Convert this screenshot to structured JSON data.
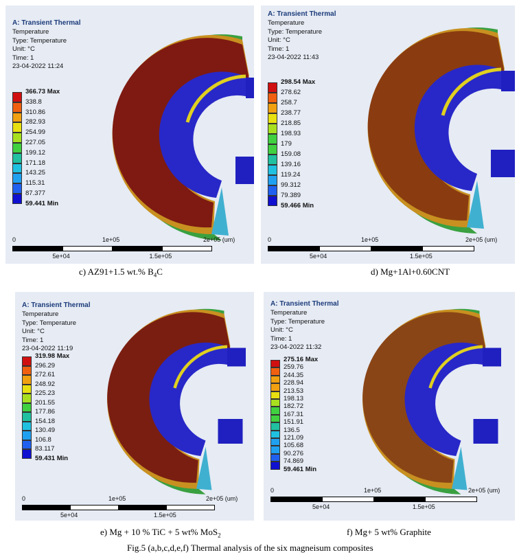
{
  "panels": [
    {
      "id": "c",
      "title": "A: Transient Thermal",
      "lines": [
        "Temperature",
        "Type: Temperature",
        "Unit: °C",
        "Time: 1",
        "23-04-2022 11:24"
      ],
      "legend": [
        "366.73 Max",
        "338.8",
        "310.86",
        "282.93",
        "254.99",
        "227.05",
        "199.12",
        "171.18",
        "143.25",
        "115.31",
        "87.377",
        "59.441 Min"
      ],
      "scale": [
        "0",
        "5e+04",
        "1e+05",
        "1.5e+05",
        "2e+05 (um)"
      ],
      "face_color": "#7e1a12",
      "caption_main": "c) AZ91+1.5 wt.% B",
      "caption_sub": "4",
      "caption_end": "C"
    },
    {
      "id": "d",
      "title": "A: Transient Thermal",
      "lines": [
        "Temperature",
        "Type: Temperature",
        "Unit: °C",
        "Time: 1",
        "23-04-2022 11:43"
      ],
      "legend": [
        "298.54 Max",
        "278.62",
        "258.7",
        "238.77",
        "218.85",
        "198.93",
        "179",
        "159.08",
        "139.16",
        "119.24",
        "99.312",
        "79.389",
        "59.466 Min"
      ],
      "scale": [
        "0",
        "5e+04",
        "1e+05",
        "1.5e+05",
        "2e+05 (um)"
      ],
      "face_color": "#8a3c10",
      "caption_main": "d) Mg+1Al+0.60CNT",
      "caption_sub": "",
      "caption_end": ""
    },
    {
      "id": "e",
      "title": "A: Transient Thermal",
      "lines": [
        "Temperature",
        "Type: Temperature",
        "Unit: °C",
        "Time: 1",
        "23-04-2022 11:19"
      ],
      "legend": [
        "319.98 Max",
        "296.29",
        "272.61",
        "248.92",
        "225.23",
        "201.55",
        "177.86",
        "154.18",
        "130.49",
        "106.8",
        "83.117",
        "59.431 Min"
      ],
      "scale": [
        "0",
        "5e+04",
        "1e+05",
        "1.5e+05",
        "2e+05 (um)"
      ],
      "face_color": "#7a1e12",
      "caption_main": "e) Mg + 10 % TiC + 5 wt% MoS",
      "caption_sub": "2",
      "caption_end": ""
    },
    {
      "id": "f",
      "title": "A: Transient Thermal",
      "lines": [
        "Temperature",
        "Type: Temperature",
        "Unit: °C",
        "Time: 1",
        "23-04-2022 11:32"
      ],
      "legend": [
        "275.16 Max",
        "259.76",
        "244.35",
        "228.94",
        "213.53",
        "198.13",
        "182.72",
        "167.31",
        "151.91",
        "136.5",
        "121.09",
        "105.68",
        "90.276",
        "74.869",
        "59.461 Min"
      ],
      "scale": [
        "0",
        "5e+04",
        "1e+05",
        "1.5e+05",
        "2e+05 (um)"
      ],
      "face_color": "#8a4516",
      "caption_main": "f) Mg+ 5 wt% Graphite",
      "caption_sub": "",
      "caption_end": ""
    }
  ],
  "figure_caption": "Fig.5 (a,b,c,d,e,f)  Thermal analysis of the six magneisum composites"
}
